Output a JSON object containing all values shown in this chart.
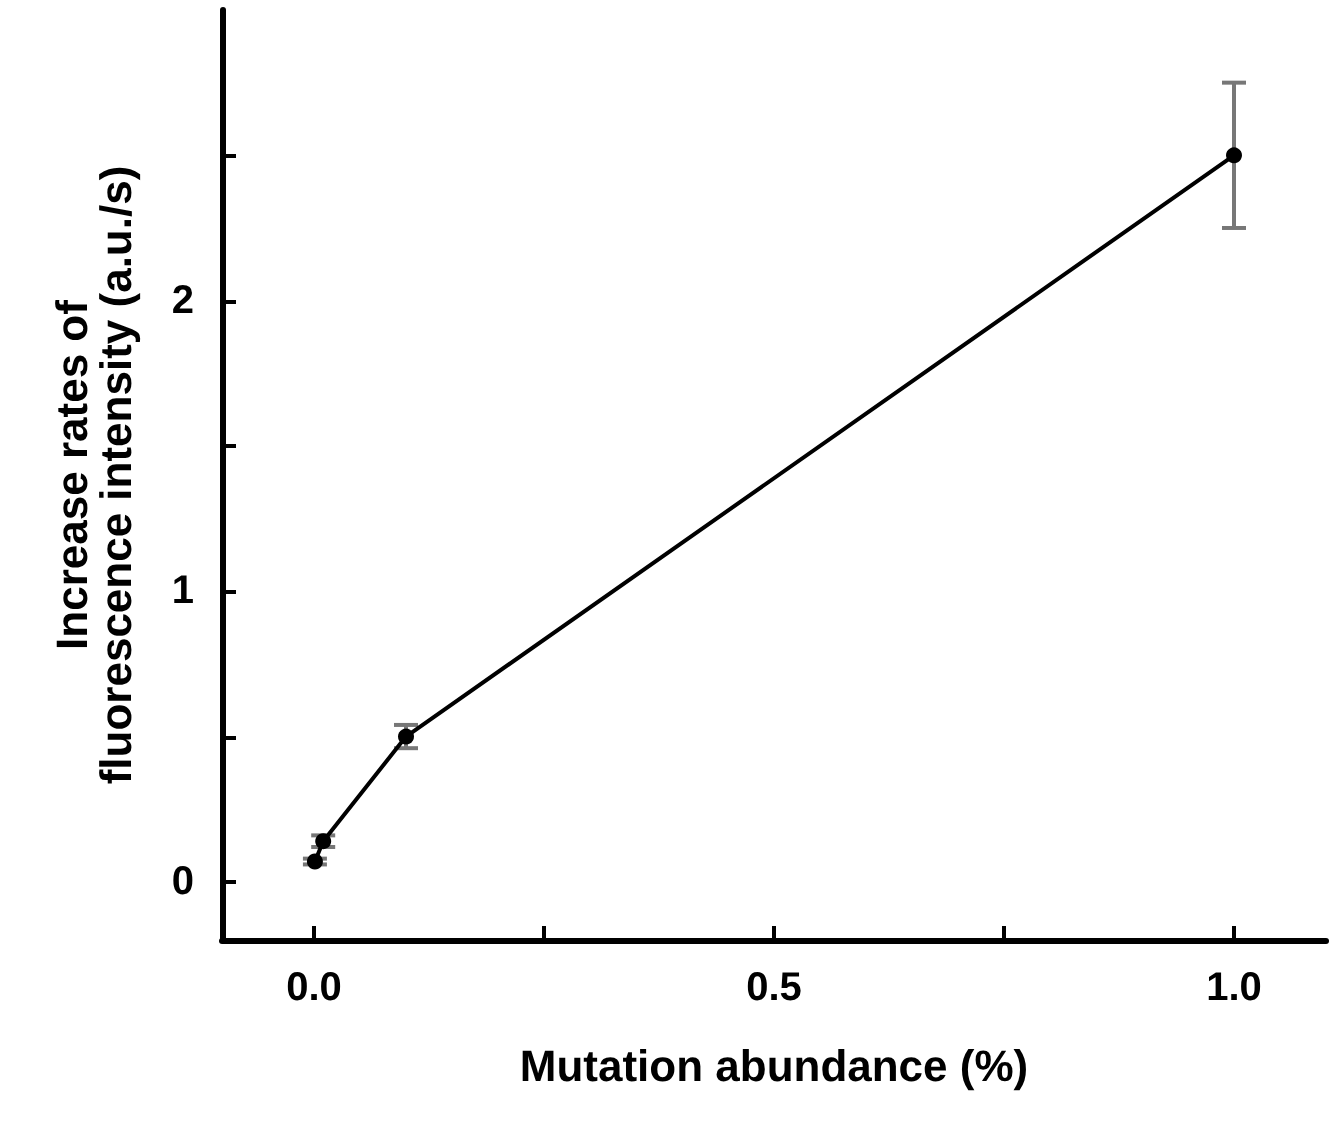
{
  "chart_data": {
    "type": "line",
    "xlabel": "Mutation abundance (%)",
    "ylabel": "Increase rates of\nfluorescence intensity (a.u./s)",
    "x": [
      0.001,
      0.01,
      0.1,
      1.0
    ],
    "series": [
      {
        "color": "#000000",
        "values": [
          0.07,
          0.14,
          0.5,
          2.5
        ],
        "errors": [
          0.01,
          0.02,
          0.04,
          0.25
        ]
      }
    ],
    "xlim": [
      -0.1,
      1.1
    ],
    "ylim": [
      -0.2,
      3.0
    ],
    "xticks": [
      {
        "value": 0,
        "label": "0.0"
      },
      {
        "value": 0.25,
        "label": null
      },
      {
        "value": 0.5,
        "label": "0.5"
      },
      {
        "value": 0.75,
        "label": null
      },
      {
        "value": 1,
        "label": "1.0"
      }
    ],
    "yticks": [
      0,
      {
        "value": 0.5,
        "label": null
      },
      1,
      {
        "value": 1.5,
        "label": null
      },
      2,
      {
        "value": 2.5,
        "label": null
      }
    ],
    "marker": "circle",
    "line_style": "solid"
  }
}
